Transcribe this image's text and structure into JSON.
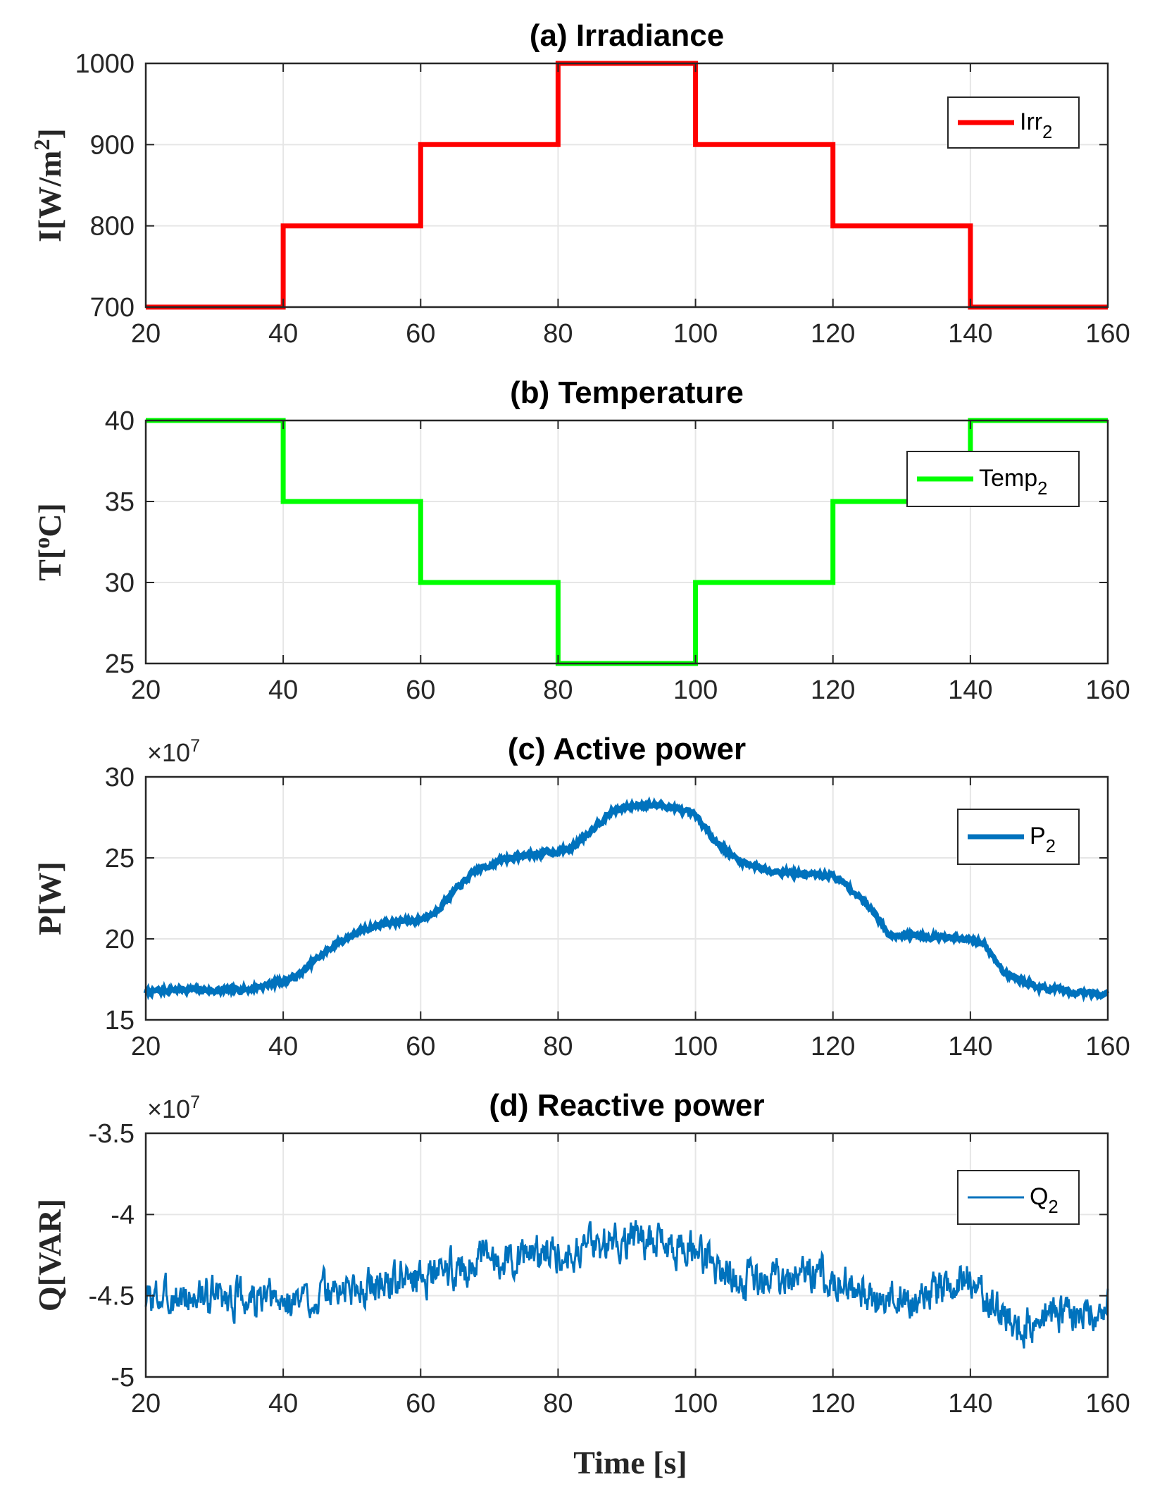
{
  "figure": {
    "xlabel": "Time [s]"
  },
  "chart_data": [
    {
      "id": "a",
      "type": "line",
      "title": "(a) Irradiance",
      "ylabel_main": "I[W/m",
      "ylabel_sup": "2",
      "ylabel_end": "]",
      "xlim": [
        20,
        160
      ],
      "ylim": [
        700,
        1000
      ],
      "xticks": [
        20,
        40,
        60,
        80,
        100,
        120,
        140,
        160
      ],
      "yticks": [
        700,
        800,
        900,
        1000
      ],
      "ytick_labels": [
        "700",
        "800",
        "900",
        "1000"
      ],
      "multiplier": "",
      "grid": true,
      "legend": {
        "position": "top-right",
        "label_main": "Irr",
        "label_sub": "2"
      },
      "series": [
        {
          "name": "Irr2",
          "color": "#ff0000",
          "step": true,
          "x": [
            20,
            40,
            40,
            60,
            60,
            80,
            80,
            100,
            100,
            120,
            120,
            140,
            140,
            160
          ],
          "y": [
            700,
            700,
            800,
            800,
            900,
            900,
            1000,
            1000,
            900,
            900,
            800,
            800,
            700,
            700
          ]
        }
      ]
    },
    {
      "id": "b",
      "type": "line",
      "title": "(b) Temperature",
      "ylabel_main": "T[",
      "ylabel_sup": "o",
      "ylabel_end": "C]",
      "xlim": [
        20,
        160
      ],
      "ylim": [
        25,
        40
      ],
      "xticks": [
        20,
        40,
        60,
        80,
        100,
        120,
        140,
        160
      ],
      "yticks": [
        25,
        30,
        35,
        40
      ],
      "ytick_labels": [
        "25",
        "30",
        "35",
        "40"
      ],
      "multiplier": "",
      "grid": true,
      "legend": {
        "position": "top-right",
        "label_main": "Temp",
        "label_sub": "2"
      },
      "series": [
        {
          "name": "Temp2",
          "color": "#00ff00",
          "step": true,
          "x": [
            20,
            40,
            40,
            60,
            60,
            80,
            80,
            100,
            100,
            120,
            120,
            140,
            140,
            160
          ],
          "y": [
            40,
            40,
            35,
            35,
            30,
            30,
            25,
            25,
            30,
            30,
            35,
            35,
            40,
            40
          ]
        }
      ]
    },
    {
      "id": "c",
      "type": "line",
      "title": "(c)  Active power",
      "ylabel_main": "P[W]",
      "ylabel_sup": "",
      "ylabel_end": "",
      "xlim": [
        20,
        160
      ],
      "ylim": [
        15,
        30
      ],
      "xticks": [
        20,
        40,
        60,
        80,
        100,
        120,
        140,
        160
      ],
      "yticks": [
        15,
        20,
        25,
        30
      ],
      "ytick_labels": [
        "15",
        "20",
        "25",
        "30"
      ],
      "multiplier": "×10",
      "multiplier_exp": "7",
      "grid": true,
      "legend": {
        "position": "top-right",
        "label_main": "P",
        "label_sub": "2"
      },
      "series": [
        {
          "name": "P2",
          "color": "#0072bd",
          "noise": 0.12,
          "seed": 7,
          "x": [
            20,
            25,
            30,
            35,
            38,
            40,
            42,
            45,
            48,
            52,
            55,
            58,
            60,
            62,
            65,
            68,
            72,
            76,
            80,
            82,
            85,
            88,
            92,
            96,
            100,
            103,
            106,
            110,
            115,
            120,
            122,
            126,
            128,
            132,
            136,
            140,
            142,
            145,
            150,
            155,
            160
          ],
          "y": [
            16.7,
            16.9,
            16.8,
            16.9,
            17.2,
            17.4,
            17.7,
            18.8,
            19.8,
            20.6,
            21.0,
            21.1,
            21.2,
            21.6,
            23.0,
            24.2,
            24.9,
            25.2,
            25.4,
            25.6,
            26.8,
            27.9,
            28.3,
            28.2,
            27.6,
            26.0,
            24.9,
            24.3,
            24.0,
            23.9,
            23.3,
            21.7,
            20.3,
            20.2,
            20.1,
            19.9,
            19.7,
            17.9,
            17.0,
            16.7,
            16.6
          ]
        }
      ]
    },
    {
      "id": "d",
      "type": "line",
      "title": "(d) Reactive power",
      "ylabel_main": "Q[VAR]",
      "ylabel_sup": "",
      "ylabel_end": "",
      "xlim": [
        20,
        160
      ],
      "ylim": [
        -5,
        -3.5
      ],
      "xticks": [
        20,
        40,
        60,
        80,
        100,
        120,
        140,
        160
      ],
      "yticks": [
        -5,
        -4.5,
        -4,
        -3.5
      ],
      "ytick_labels": [
        "-5",
        "-4.5",
        "-4",
        "-3.5"
      ],
      "multiplier": "×10",
      "multiplier_exp": "7",
      "grid": true,
      "legend": {
        "position": "top-right",
        "label_main": "Q",
        "label_sub": "2"
      },
      "series": [
        {
          "name": "Q2",
          "color": "#0072bd",
          "noise": 0.09,
          "seed": 3,
          "x": [
            20,
            30,
            40,
            50,
            60,
            70,
            80,
            90,
            95,
            100,
            105,
            110,
            115,
            120,
            122,
            126,
            130,
            135,
            140,
            143,
            147,
            152,
            160
          ],
          "y": [
            -4.52,
            -4.5,
            -4.55,
            -4.45,
            -4.38,
            -4.28,
            -4.22,
            -4.15,
            -4.17,
            -4.22,
            -4.38,
            -4.42,
            -4.35,
            -4.38,
            -4.42,
            -4.55,
            -4.52,
            -4.48,
            -4.4,
            -4.55,
            -4.7,
            -4.62,
            -4.58
          ]
        }
      ]
    }
  ]
}
